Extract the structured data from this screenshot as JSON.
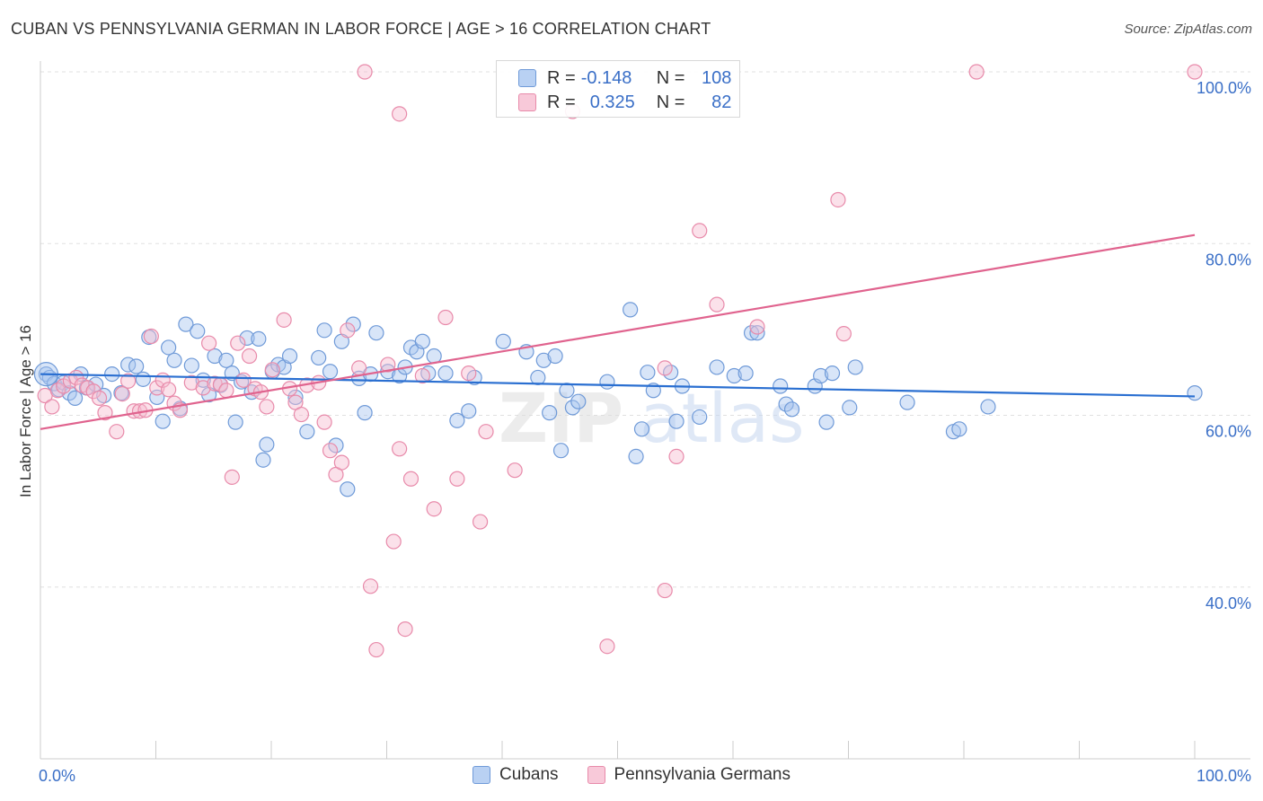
{
  "title": "CUBAN VS PENNSYLVANIA GERMAN IN LABOR FORCE | AGE > 16 CORRELATION CHART",
  "source": "Source: ZipAtlas.com",
  "watermark": "ZIPatlas",
  "colors": {
    "blue_fill": "#a9c6ef",
    "blue_stroke": "#6f9ad8",
    "blue_line": "#2a6fd1",
    "pink_fill": "#f6bcd0",
    "pink_stroke": "#e88aaa",
    "pink_line": "#e0638e",
    "axis_text": "#3a6fc7",
    "grid": "#e0e0e0"
  },
  "legend": {
    "rows": [
      {
        "r_label": "R =",
        "r_value": "-0.148",
        "n_label": "N =",
        "n_value": "108"
      },
      {
        "r_label": "R =",
        "r_value": "0.325",
        "n_label": "N =",
        "n_value": "82"
      }
    ]
  },
  "bottom_legend": [
    "Cubans",
    "Pennsylvania Germans"
  ],
  "chart_data": {
    "type": "scatter",
    "title": "CUBAN VS PENNSYLVANIA GERMAN IN LABOR FORCE | AGE > 16 CORRELATION CHART",
    "xlabel": "",
    "ylabel": "In Labor Force | Age > 16",
    "xlim": [
      0,
      100
    ],
    "ylim": [
      20,
      100
    ],
    "x_tick_labels": [
      "0.0%",
      "100.0%"
    ],
    "y_ticks": [
      40,
      60,
      80,
      100
    ],
    "y_tick_labels": [
      "40.0%",
      "60.0%",
      "80.0%",
      "100.0%"
    ],
    "grid": true,
    "series": [
      {
        "name": "Cubans",
        "color": "blue",
        "trend": {
          "x": [
            0,
            100
          ],
          "y": [
            64.8,
            62.2
          ]
        },
        "points": [
          [
            0.5,
            64.8
          ],
          [
            0.8,
            64.4
          ],
          [
            1.2,
            63.7
          ],
          [
            1.6,
            63.0
          ],
          [
            2.0,
            63.8
          ],
          [
            2.5,
            62.6
          ],
          [
            3.0,
            62.0
          ],
          [
            3.5,
            64.8
          ],
          [
            4.0,
            63.2
          ],
          [
            4.8,
            63.6
          ],
          [
            5.5,
            62.3
          ],
          [
            6.2,
            64.8
          ],
          [
            7.0,
            62.6
          ],
          [
            7.6,
            65.9
          ],
          [
            8.3,
            65.7
          ],
          [
            8.9,
            64.2
          ],
          [
            9.4,
            69.1
          ],
          [
            10.1,
            62.1
          ],
          [
            10.6,
            59.3
          ],
          [
            11.1,
            67.9
          ],
          [
            11.6,
            66.4
          ],
          [
            12.1,
            60.8
          ],
          [
            12.6,
            70.6
          ],
          [
            13.1,
            65.8
          ],
          [
            13.6,
            69.8
          ],
          [
            14.1,
            64.1
          ],
          [
            14.6,
            62.4
          ],
          [
            15.1,
            66.9
          ],
          [
            15.6,
            63.5
          ],
          [
            16.1,
            66.4
          ],
          [
            16.6,
            64.9
          ],
          [
            16.9,
            59.2
          ],
          [
            17.4,
            63.9
          ],
          [
            17.9,
            69.0
          ],
          [
            18.3,
            62.7
          ],
          [
            18.9,
            68.9
          ],
          [
            19.3,
            54.8
          ],
          [
            19.6,
            56.6
          ],
          [
            20.1,
            65.1
          ],
          [
            20.6,
            65.9
          ],
          [
            21.1,
            65.6
          ],
          [
            21.6,
            66.9
          ],
          [
            22.1,
            62.1
          ],
          [
            23.1,
            58.1
          ],
          [
            24.1,
            66.7
          ],
          [
            24.6,
            69.9
          ],
          [
            25.1,
            65.1
          ],
          [
            25.6,
            56.5
          ],
          [
            26.1,
            68.6
          ],
          [
            26.6,
            51.4
          ],
          [
            27.1,
            70.6
          ],
          [
            27.6,
            64.3
          ],
          [
            28.1,
            60.3
          ],
          [
            28.6,
            64.8
          ],
          [
            29.1,
            69.6
          ],
          [
            30.1,
            65.1
          ],
          [
            31.1,
            64.6
          ],
          [
            31.6,
            65.6
          ],
          [
            32.1,
            67.9
          ],
          [
            32.6,
            67.4
          ],
          [
            33.1,
            68.6
          ],
          [
            33.6,
            64.9
          ],
          [
            34.1,
            66.9
          ],
          [
            35.1,
            64.9
          ],
          [
            36.1,
            59.4
          ],
          [
            37.1,
            60.5
          ],
          [
            37.6,
            64.4
          ],
          [
            40.1,
            68.6
          ],
          [
            42.1,
            67.4
          ],
          [
            43.1,
            64.4
          ],
          [
            43.6,
            66.4
          ],
          [
            44.6,
            66.9
          ],
          [
            45.1,
            55.9
          ],
          [
            44.1,
            60.3
          ],
          [
            45.6,
            62.9
          ],
          [
            46.1,
            60.9
          ],
          [
            46.6,
            61.6
          ],
          [
            49.1,
            63.9
          ],
          [
            51.1,
            72.3
          ],
          [
            51.6,
            55.2
          ],
          [
            52.1,
            58.4
          ],
          [
            52.6,
            65.0
          ],
          [
            53.1,
            62.9
          ],
          [
            54.6,
            65.0
          ],
          [
            55.1,
            59.3
          ],
          [
            55.6,
            63.4
          ],
          [
            57.1,
            59.8
          ],
          [
            58.6,
            65.6
          ],
          [
            60.1,
            64.6
          ],
          [
            61.1,
            64.9
          ],
          [
            61.6,
            69.6
          ],
          [
            62.1,
            69.6
          ],
          [
            64.1,
            63.4
          ],
          [
            64.6,
            61.3
          ],
          [
            65.1,
            60.7
          ],
          [
            67.1,
            63.4
          ],
          [
            67.6,
            64.6
          ],
          [
            68.1,
            59.2
          ],
          [
            68.6,
            64.9
          ],
          [
            70.1,
            60.9
          ],
          [
            70.6,
            65.6
          ],
          [
            75.1,
            61.5
          ],
          [
            79.1,
            58.1
          ],
          [
            79.6,
            58.4
          ],
          [
            82.1,
            61.0
          ],
          [
            100.0,
            62.6
          ]
        ]
      },
      {
        "name": "Pennsylvania Germans",
        "color": "pink",
        "trend": {
          "x": [
            0,
            100
          ],
          "y": [
            58.4,
            81.0
          ]
        },
        "points": [
          [
            0.4,
            62.3
          ],
          [
            1.0,
            61.0
          ],
          [
            1.5,
            62.9
          ],
          [
            2.0,
            63.4
          ],
          [
            2.6,
            64.0
          ],
          [
            3.1,
            64.4
          ],
          [
            3.6,
            63.5
          ],
          [
            4.1,
            63.2
          ],
          [
            4.6,
            62.8
          ],
          [
            5.1,
            62.0
          ],
          [
            5.6,
            60.3
          ],
          [
            6.6,
            58.1
          ],
          [
            7.1,
            62.5
          ],
          [
            7.6,
            64.0
          ],
          [
            8.1,
            60.5
          ],
          [
            8.6,
            60.5
          ],
          [
            9.1,
            60.6
          ],
          [
            9.6,
            69.2
          ],
          [
            10.1,
            63.2
          ],
          [
            10.6,
            64.1
          ],
          [
            11.1,
            63.0
          ],
          [
            11.6,
            61.4
          ],
          [
            12.1,
            60.6
          ],
          [
            13.1,
            63.8
          ],
          [
            14.1,
            63.2
          ],
          [
            14.6,
            68.4
          ],
          [
            15.1,
            63.7
          ],
          [
            15.6,
            63.6
          ],
          [
            16.1,
            62.9
          ],
          [
            16.6,
            52.8
          ],
          [
            17.1,
            68.4
          ],
          [
            17.6,
            64.1
          ],
          [
            18.1,
            66.9
          ],
          [
            18.6,
            63.1
          ],
          [
            19.1,
            62.7
          ],
          [
            19.6,
            61.0
          ],
          [
            20.1,
            65.3
          ],
          [
            21.1,
            71.1
          ],
          [
            21.6,
            63.1
          ],
          [
            22.1,
            61.5
          ],
          [
            22.6,
            60.1
          ],
          [
            23.1,
            63.5
          ],
          [
            24.1,
            63.8
          ],
          [
            24.6,
            59.2
          ],
          [
            25.1,
            55.9
          ],
          [
            25.6,
            53.1
          ],
          [
            26.1,
            54.5
          ],
          [
            26.6,
            69.9
          ],
          [
            27.6,
            65.5
          ],
          [
            28.6,
            40.1
          ],
          [
            29.1,
            32.7
          ],
          [
            30.1,
            65.9
          ],
          [
            30.6,
            45.3
          ],
          [
            31.1,
            56.1
          ],
          [
            31.6,
            35.1
          ],
          [
            32.1,
            52.6
          ],
          [
            33.1,
            64.6
          ],
          [
            34.1,
            49.1
          ],
          [
            35.1,
            71.4
          ],
          [
            36.1,
            52.6
          ],
          [
            37.1,
            64.9
          ],
          [
            38.1,
            47.6
          ],
          [
            38.6,
            58.1
          ],
          [
            41.1,
            53.6
          ],
          [
            31.1,
            95.1
          ],
          [
            28.1,
            100.0
          ],
          [
            46.1,
            95.4
          ],
          [
            69.1,
            85.1
          ],
          [
            57.1,
            81.5
          ],
          [
            58.6,
            72.9
          ],
          [
            62.1,
            70.3
          ],
          [
            69.6,
            69.5
          ],
          [
            54.1,
            65.5
          ],
          [
            55.1,
            55.2
          ],
          [
            81.1,
            100.0
          ],
          [
            100.0,
            100.0
          ],
          [
            54.1,
            39.6
          ],
          [
            49.1,
            33.1
          ]
        ]
      }
    ]
  }
}
